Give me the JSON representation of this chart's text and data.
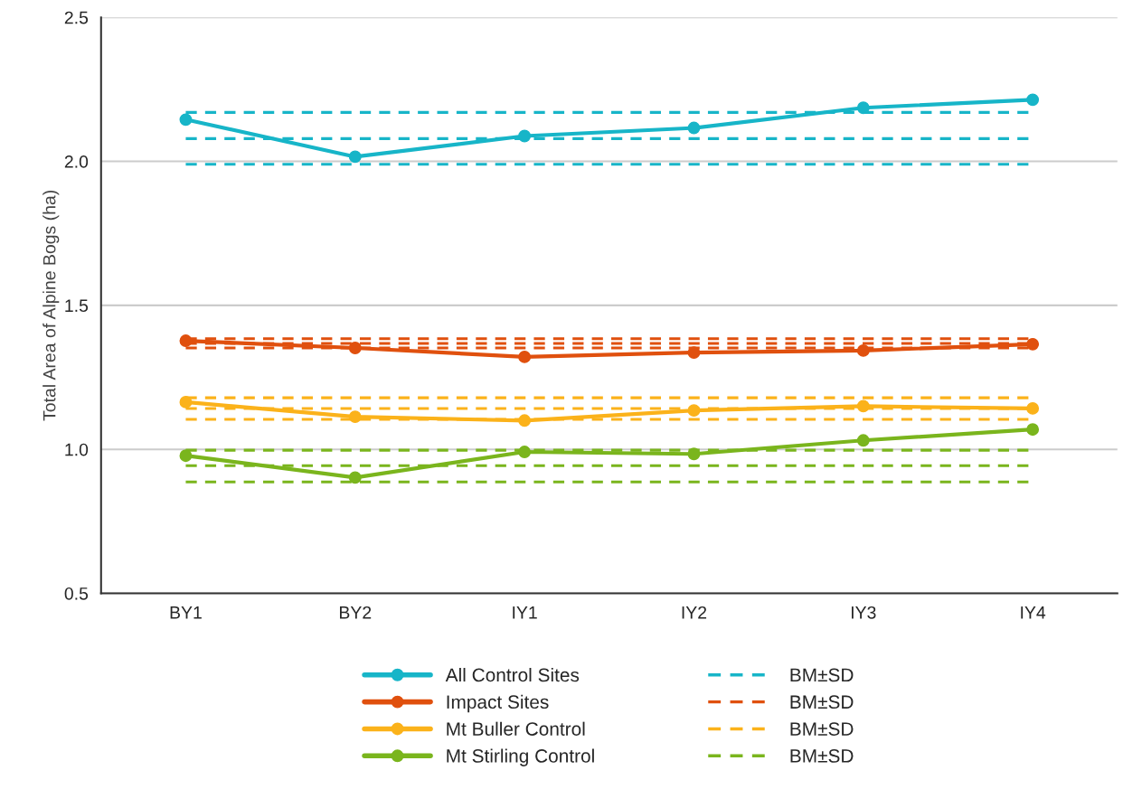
{
  "chart_data": {
    "type": "line",
    "ylabel": "Total Area of Alpine Bogs (ha)",
    "categories": [
      "BY1",
      "BY2",
      "IY1",
      "IY2",
      "IY3",
      "IY4"
    ],
    "series": [
      {
        "name": "All Control Sites",
        "color": "#17b5c8",
        "values": [
          2.145,
          2.016,
          2.088,
          2.116,
          2.186,
          2.214
        ]
      },
      {
        "name": "Impact Sites",
        "color": "#e0500e",
        "values": [
          1.377,
          1.352,
          1.321,
          1.336,
          1.343,
          1.365
        ]
      },
      {
        "name": "Mt Buller Control",
        "color": "#fbb21a",
        "values": [
          1.164,
          1.113,
          1.1,
          1.135,
          1.15,
          1.142
        ]
      },
      {
        "name": "Mt Stirling Control",
        "color": "#7ab51d",
        "values": [
          0.978,
          0.902,
          0.991,
          0.984,
          1.031,
          1.069
        ]
      }
    ],
    "ref_lines": [
      {
        "axis": "y",
        "value": 2.17,
        "color": "#17b5c8",
        "line_style": "dashed"
      },
      {
        "axis": "y",
        "value": 2.079,
        "label": "BM±SD",
        "color": "#17b5c8",
        "line_style": "dashed"
      },
      {
        "axis": "y",
        "value": 1.99,
        "color": "#17b5c8",
        "line_style": "dashed"
      },
      {
        "axis": "y",
        "value": 1.384,
        "color": "#e0500e",
        "line_style": "dashed"
      },
      {
        "axis": "y",
        "value": 1.368,
        "label": "BM±SD",
        "color": "#e0500e",
        "line_style": "dashed"
      },
      {
        "axis": "y",
        "value": 1.352,
        "color": "#e0500e",
        "line_style": "dashed"
      },
      {
        "axis": "y",
        "value": 1.179,
        "color": "#fbb21a",
        "line_style": "dashed"
      },
      {
        "axis": "y",
        "value": 1.142,
        "label": "BM±SD",
        "color": "#fbb21a",
        "line_style": "dashed"
      },
      {
        "axis": "y",
        "value": 1.104,
        "color": "#fbb21a",
        "line_style": "dashed"
      },
      {
        "axis": "y",
        "value": 0.997,
        "color": "#7ab51d",
        "line_style": "dashed"
      },
      {
        "axis": "y",
        "value": 0.943,
        "label": "BM±SD",
        "color": "#7ab51d",
        "line_style": "dashed"
      },
      {
        "axis": "y",
        "value": 0.887,
        "color": "#7ab51d",
        "line_style": "dashed"
      }
    ],
    "ylim": [
      0.5,
      2.5
    ],
    "yticks": [
      {
        "value": 0.5,
        "label": "0.5"
      },
      {
        "value": 1,
        "label": "1.0"
      },
      {
        "value": 1.5,
        "label": "1.5"
      },
      {
        "value": 2,
        "label": "2.0"
      },
      {
        "value": 2.5,
        "label": "2.5"
      }
    ],
    "grid": "y",
    "legend": "bottom",
    "marker": "circle",
    "line_style": "solid"
  }
}
